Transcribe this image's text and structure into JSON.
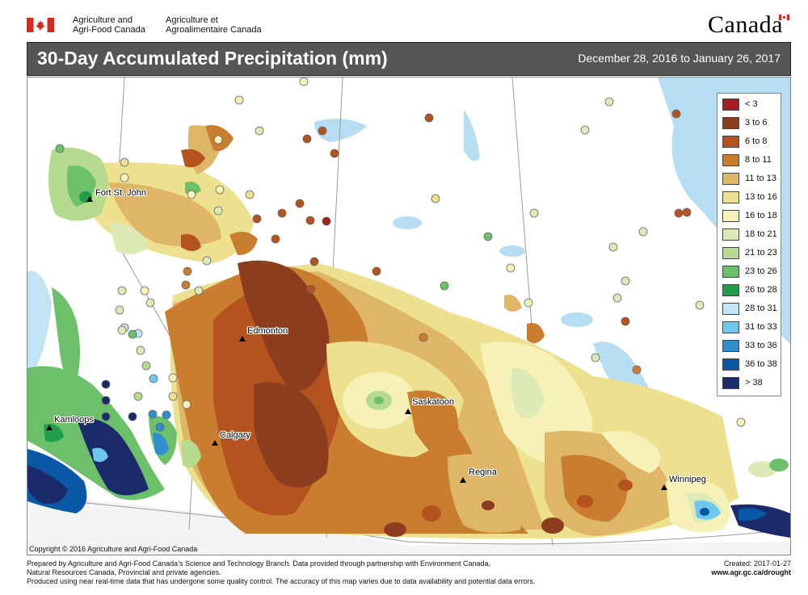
{
  "header": {
    "org_en_line1": "Agriculture and",
    "org_en_line2": "Agri-Food Canada",
    "org_fr_line1": "Agriculture et",
    "org_fr_line2": "Agroalimentaire Canada",
    "wordmark": "Canada"
  },
  "title_bar": {
    "title": "30-Day Accumulated Precipitation (mm)",
    "date_range": "December 28, 2016 to January 26, 2017"
  },
  "colors": {
    "title_bar_bg": "#555555",
    "flag_red": "#d52b1e",
    "water": "#b7ddf3",
    "land_no_data": "#ffffff"
  },
  "legend": [
    {
      "label": "< 3",
      "color": "#a51d1d"
    },
    {
      "label": "3 to 6",
      "color": "#8c3d1e"
    },
    {
      "label": "6 to 8",
      "color": "#b5531f"
    },
    {
      "label": "8 to 11",
      "color": "#c97d2e"
    },
    {
      "label": "11 to 13",
      "color": "#dfb668"
    },
    {
      "label": "13 to 16",
      "color": "#ede08e"
    },
    {
      "label": "16 to 18",
      "color": "#f6f2b7"
    },
    {
      "label": "18 to 21",
      "color": "#deeab6"
    },
    {
      "label": "21 to 23",
      "color": "#b6db8e"
    },
    {
      "label": "23 to 26",
      "color": "#6cc06a"
    },
    {
      "label": "26 to 28",
      "color": "#1f9e4c"
    },
    {
      "label": "28 to 31",
      "color": "#c2e4f4"
    },
    {
      "label": "31 to 33",
      "color": "#6cc8ef"
    },
    {
      "label": "33 to 36",
      "color": "#2f8fce"
    },
    {
      "label": "36 to 38",
      "color": "#0b59a6"
    },
    {
      "label": "> 38",
      "color": "#1a2a6b"
    }
  ],
  "cities": [
    {
      "name": "Fort St. John"
    },
    {
      "name": "Edmonton"
    },
    {
      "name": "Saskatoon"
    },
    {
      "name": "Kamloops"
    },
    {
      "name": "Calgary"
    },
    {
      "name": "Regina"
    },
    {
      "name": "Winnipeg"
    }
  ],
  "copyright": "Copyright © 2016 Agriculture and Agri-Food Canada",
  "footer": {
    "line1": "Prepared by Agriculture and Agri-Food Canada’s Science and Technology Branch. Data provided through partnership with Environment Canada,",
    "line2": "Natural Resources Canada, Provincial and private agencies.",
    "line3": "Produced using near real-time data that has undergone some quality control. The accuracy of this map varies due to data availability and potential data errors.",
    "created": "Created: 2017-01-27",
    "url": "www.agr.gc.ca/drought"
  }
}
